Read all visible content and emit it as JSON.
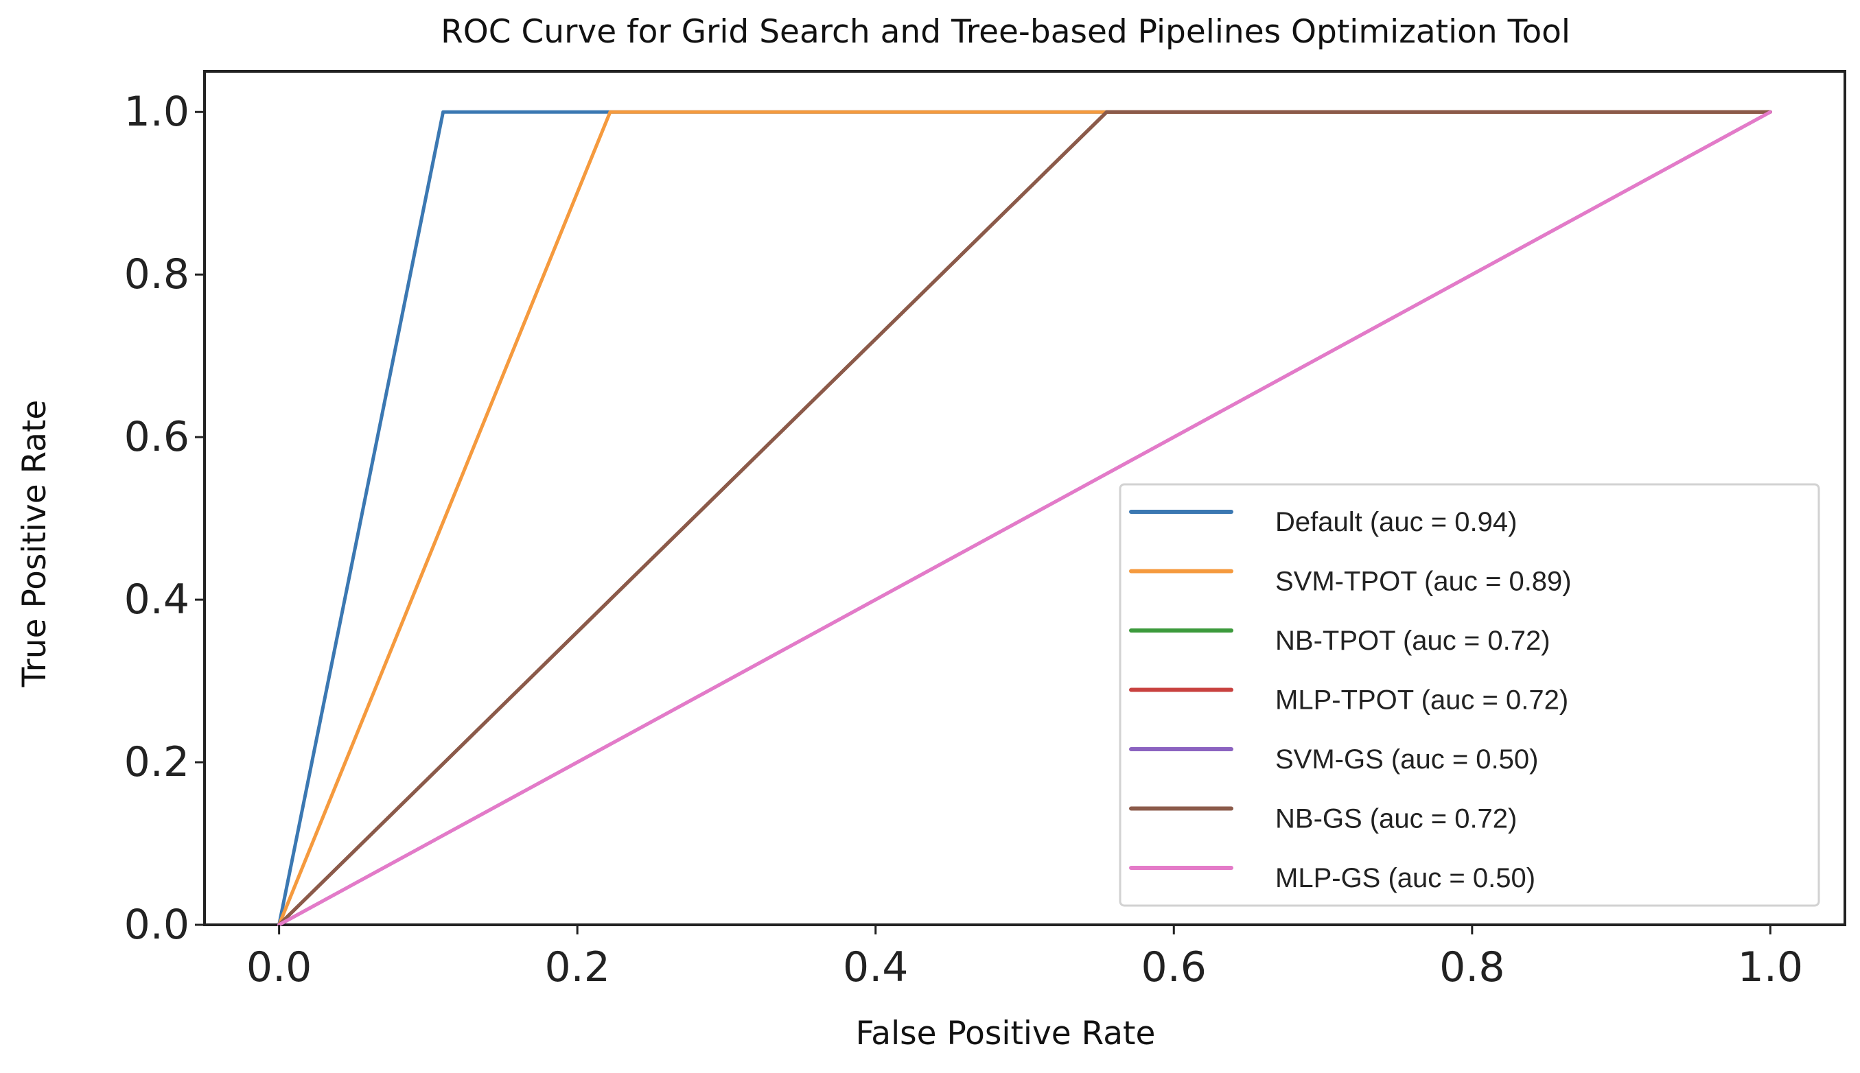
{
  "chart_data": {
    "type": "line",
    "title": "ROC Curve for Grid Search and Tree-based Pipelines Optimization Tool",
    "xlabel": "False Positive Rate",
    "ylabel": "True Positive Rate",
    "xlim": [
      -0.05,
      1.05
    ],
    "ylim": [
      0.0,
      1.05
    ],
    "xticks": [
      0.0,
      0.2,
      0.4,
      0.6,
      0.8,
      1.0
    ],
    "xtick_labels": [
      "0.0",
      "0.2",
      "0.4",
      "0.6",
      "0.8",
      "1.0"
    ],
    "yticks": [
      0.0,
      0.2,
      0.4,
      0.6,
      0.8,
      1.0
    ],
    "ytick_labels": [
      "0.0",
      "0.2",
      "0.4",
      "0.6",
      "0.8",
      "1.0"
    ],
    "grid": false,
    "legend_position": "lower-right",
    "series": [
      {
        "name": "Default (auc = 0.94)",
        "color": "#3b78b2",
        "x": [
          0.0,
          0.11,
          1.0
        ],
        "y": [
          0.0,
          1.0,
          1.0
        ]
      },
      {
        "name": "SVM-TPOT (auc = 0.89)",
        "color": "#f59a3e",
        "x": [
          0.0,
          0.222,
          1.0
        ],
        "y": [
          0.0,
          1.0,
          1.0
        ]
      },
      {
        "name": "NB-TPOT (auc = 0.72)",
        "color": "#3c9a3c",
        "x": [
          0.0,
          0.555,
          1.0
        ],
        "y": [
          0.0,
          1.0,
          1.0
        ]
      },
      {
        "name": "MLP-TPOT (auc = 0.72)",
        "color": "#c8413f",
        "x": [
          0.0,
          0.555,
          1.0
        ],
        "y": [
          0.0,
          1.0,
          1.0
        ]
      },
      {
        "name": "SVM-GS (auc = 0.50)",
        "color": "#8b63c0",
        "x": [
          0.0,
          1.0
        ],
        "y": [
          0.0,
          1.0
        ]
      },
      {
        "name": "NB-GS (auc = 0.72)",
        "color": "#8b5a4a",
        "x": [
          0.0,
          0.555,
          1.0
        ],
        "y": [
          0.0,
          1.0,
          1.0
        ]
      },
      {
        "name": "MLP-GS (auc = 0.50)",
        "color": "#e47ac8",
        "x": [
          0.0,
          1.0
        ],
        "y": [
          0.0,
          1.0
        ]
      }
    ]
  }
}
